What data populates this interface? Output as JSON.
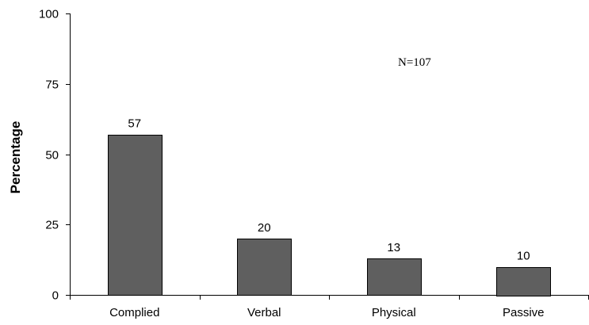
{
  "chart_data": {
    "type": "bar",
    "categories": [
      "Complied",
      "Verbal",
      "Physical",
      "Passive"
    ],
    "values": [
      57,
      20,
      13,
      10
    ],
    "data_labels": [
      "57",
      "20",
      "13",
      "10"
    ],
    "title": "",
    "xlabel": "",
    "ylabel": "Percentage",
    "ylim": [
      0,
      100
    ],
    "yticks": [
      0,
      25,
      50,
      75,
      100
    ],
    "ytick_labels": [
      "0",
      "25",
      "50",
      "75",
      "100"
    ],
    "annotation": "N=107",
    "grid": false,
    "legend": "none",
    "colors": {
      "bar_fill": "#5f5f5f",
      "bar_stroke": "#000000",
      "axis": "#000000"
    }
  }
}
